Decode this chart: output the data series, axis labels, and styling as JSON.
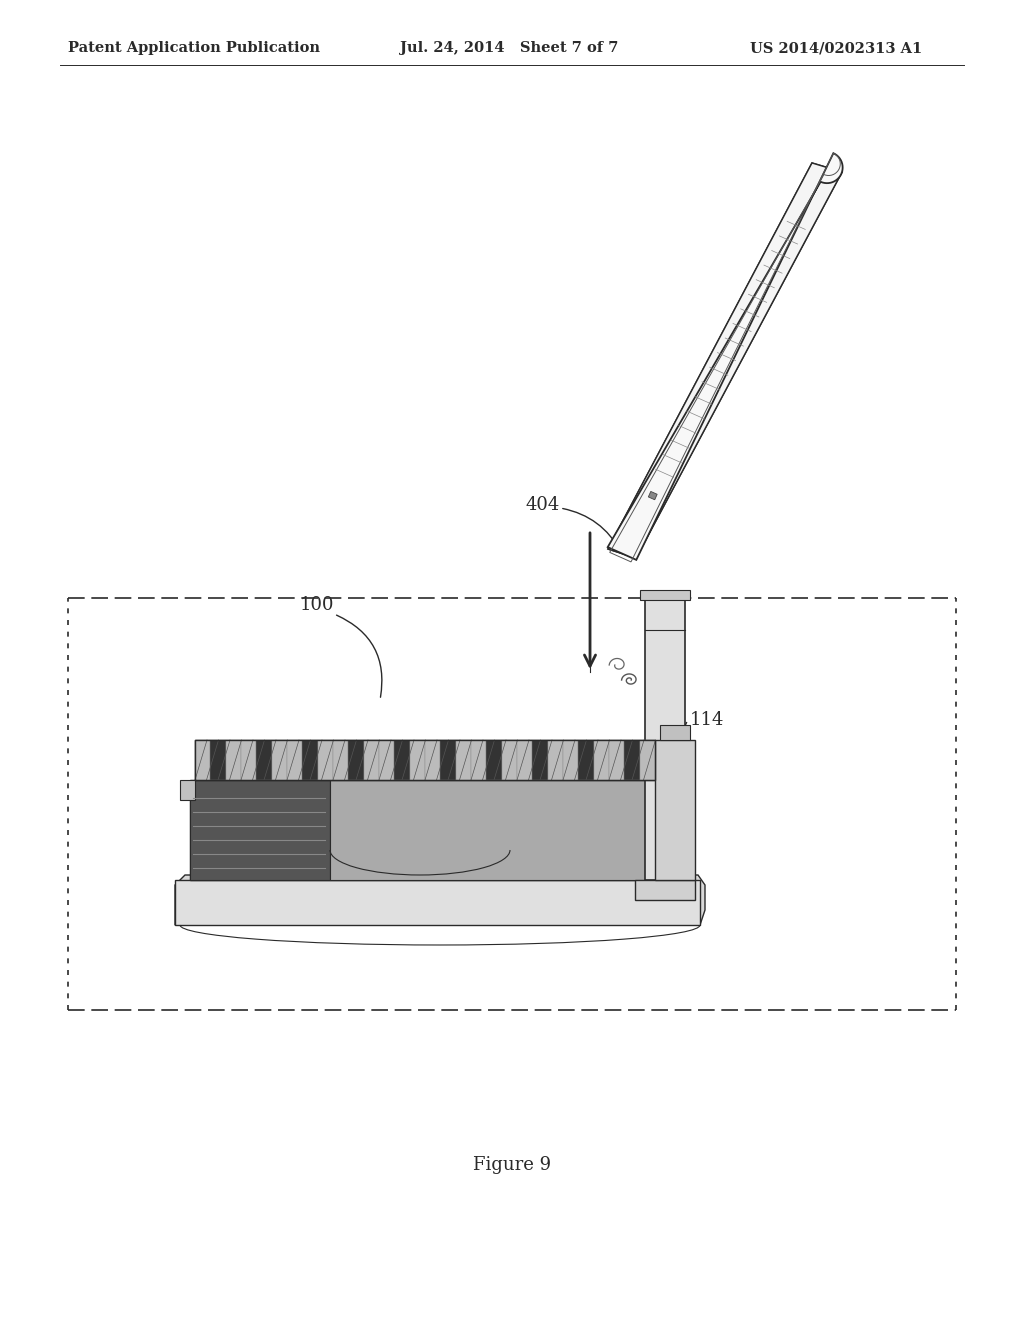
{
  "bg_color": "#ffffff",
  "header_left": "Patent Application Publication",
  "header_center": "Jul. 24, 2014   Sheet 7 of 7",
  "header_right": "US 2014/0202313 A1",
  "figure_label": "Figure 9",
  "label_404": "404",
  "label_100": "100",
  "label_114": "114",
  "line_color": "#2a2a2a",
  "header_fontsize": 10.5,
  "label_fontsize": 13,
  "fig_label_fontsize": 13
}
